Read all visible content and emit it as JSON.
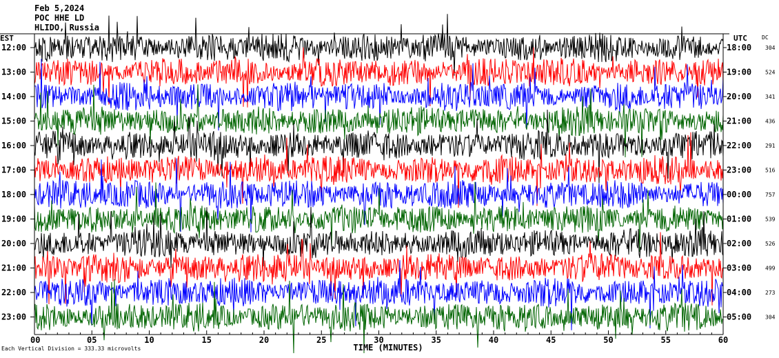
{
  "header": {
    "date": "Feb 5,2024",
    "station": "POC HHE LD",
    "location": "HLIDO, Russia"
  },
  "labels": {
    "left_zone": "EST",
    "right_zone": "UTC",
    "dc_header": "DC",
    "footnote": "Each Vertical Division =  333.33 microvolts"
  },
  "colors": {
    "trace_cycle": [
      "#000000",
      "#ff0000",
      "#0000ff",
      "#006400"
    ],
    "background": "#ffffff"
  },
  "chart_data": {
    "type": "line",
    "xlabel": "TIME (MINUTES)",
    "xlim": [
      0,
      60
    ],
    "x_ticks": [
      "00",
      "05",
      "10",
      "15",
      "20",
      "25",
      "30",
      "35",
      "40",
      "45",
      "50",
      "55",
      "60"
    ],
    "rows": [
      {
        "est": "12:00",
        "utc": "18:00",
        "dc": "304",
        "color": "#000000"
      },
      {
        "est": "13:00",
        "utc": "19:00",
        "dc": "524",
        "color": "#ff0000"
      },
      {
        "est": "14:00",
        "utc": "20:00",
        "dc": "341",
        "color": "#0000ff"
      },
      {
        "est": "15:00",
        "utc": "21:00",
        "dc": "436",
        "color": "#006400"
      },
      {
        "est": "16:00",
        "utc": "22:00",
        "dc": "291",
        "color": "#000000"
      },
      {
        "est": "17:00",
        "utc": "23:00",
        "dc": "516",
        "color": "#ff0000"
      },
      {
        "est": "18:00",
        "utc": "00:00",
        "dc": "757",
        "color": "#0000ff"
      },
      {
        "est": "19:00",
        "utc": "01:00",
        "dc": "539",
        "color": "#006400"
      },
      {
        "est": "20:00",
        "utc": "02:00",
        "dc": "526",
        "color": "#000000"
      },
      {
        "est": "21:00",
        "utc": "03:00",
        "dc": "499",
        "color": "#ff0000"
      },
      {
        "est": "22:00",
        "utc": "04:00",
        "dc": "273",
        "color": "#0000ff"
      },
      {
        "est": "23:00",
        "utc": "05:00",
        "dc": "304",
        "color": "#006400"
      }
    ]
  }
}
